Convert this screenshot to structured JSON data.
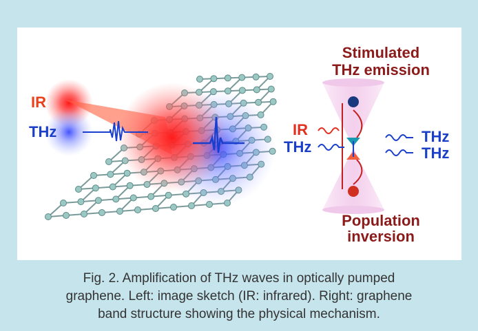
{
  "figure": {
    "left": {
      "pump": "IR",
      "probe": "THz"
    },
    "right": {
      "title": [
        "Stimulated",
        "THz emission"
      ],
      "inputs": [
        "IR",
        "THz"
      ],
      "outputs": [
        "THz",
        "THz"
      ],
      "bottom": [
        "Population",
        "inversion"
      ]
    }
  },
  "caption": [
    "Fig. 2. Amplification of THz waves in optically pumped",
    "graphene. Left: image sketch (IR: infrared). Right: graphene",
    "band structure showing the physical mechanism."
  ]
}
